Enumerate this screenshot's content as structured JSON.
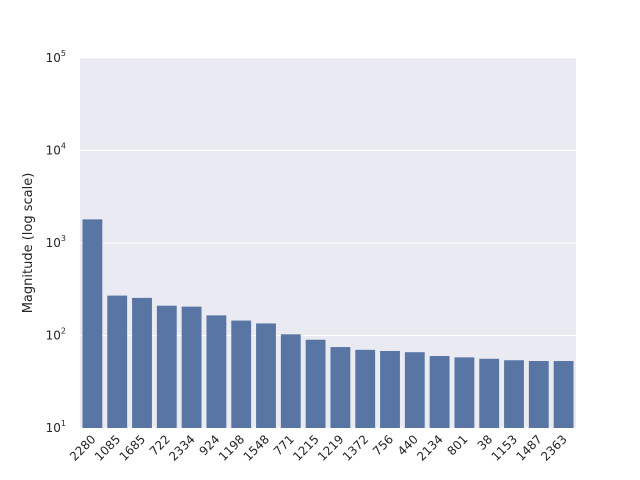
{
  "chart_data": {
    "type": "bar",
    "title": "",
    "xlabel": "",
    "ylabel": "Magnitude (log scale)",
    "yscale": "log",
    "ylim": [
      10,
      100000
    ],
    "yticks": [
      10,
      100,
      1000,
      10000,
      100000
    ],
    "grid": true,
    "colors": {
      "bar": "#5875a4",
      "background": "#eaeaf2",
      "grid": "#ffffff"
    },
    "categories": [
      "2280",
      "1085",
      "1685",
      "722",
      "2334",
      "924",
      "1198",
      "1548",
      "771",
      "1215",
      "1219",
      "1372",
      "756",
      "440",
      "2134",
      "801",
      "38",
      "1153",
      "1487",
      "2363"
    ],
    "values": [
      1800,
      270,
      255,
      210,
      205,
      165,
      145,
      135,
      103,
      90,
      75,
      70,
      68,
      66,
      60,
      58,
      56,
      54,
      53,
      53
    ]
  }
}
